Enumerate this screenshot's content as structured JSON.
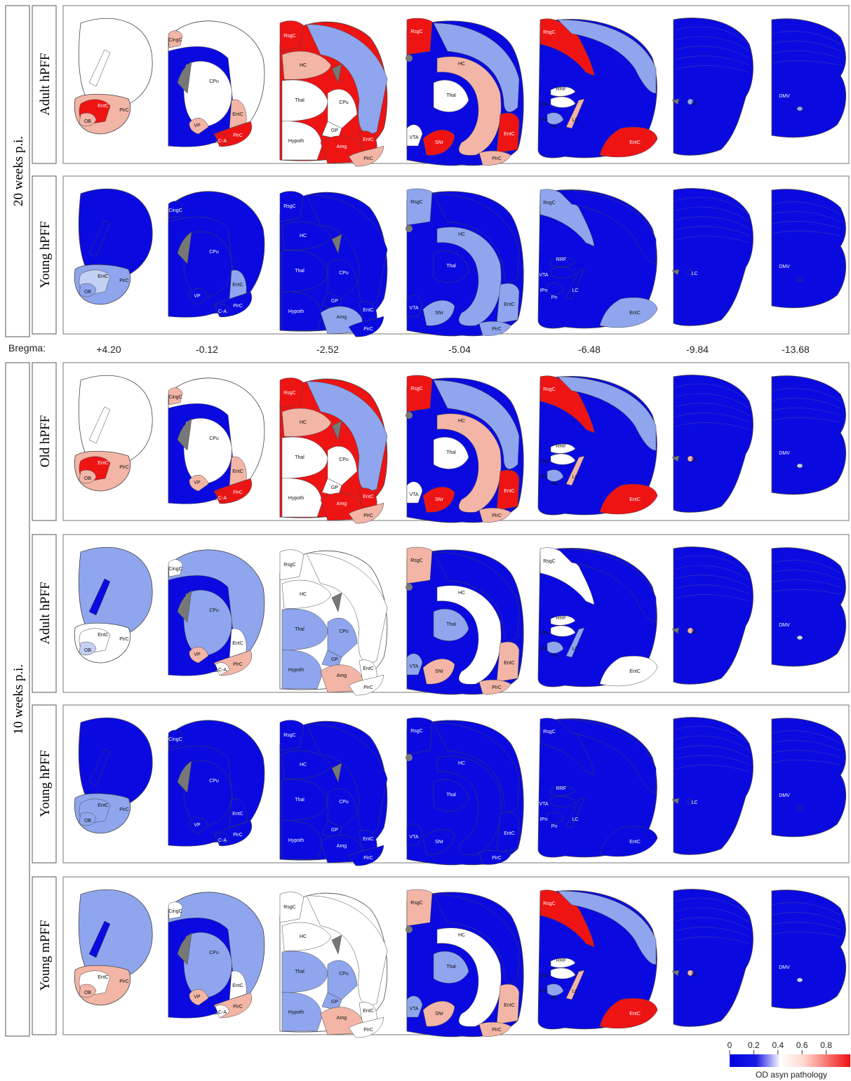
{
  "groups": [
    "20 weeks p.i.",
    "10 weeks p.i."
  ],
  "rows": [
    {
      "label": "Adult hPFF",
      "group": 0
    },
    {
      "label": "Young hPFF",
      "group": 0
    },
    {
      "label": "Old hPFF",
      "group": 1
    },
    {
      "label": "Adult hPFF",
      "group": 1
    },
    {
      "label": "Young hPFF",
      "group": 1
    },
    {
      "label": "Young mPFF",
      "group": 1
    }
  ],
  "bregma": {
    "label": "Bregma:",
    "values": [
      "+4.20",
      "-0.12",
      "-2.52",
      "-5.04",
      "-6.48",
      "-9.84",
      "-13.68"
    ]
  },
  "colorbar": {
    "title": "OD asyn pathology",
    "ticks": [
      "0",
      "0.2",
      "0.4",
      "0.6",
      "0.8"
    ],
    "tick_values": [
      0,
      0.2,
      0.4,
      0.6,
      0.8
    ],
    "min": 0,
    "max": 1,
    "colors": [
      "#0000dd",
      "#ffffff",
      "#ee1111"
    ]
  },
  "palette": {
    "blue": "#0a0ae0",
    "lightblue": "#8fa6ee",
    "paleblue": "#c4d0f3",
    "white": "#ffffff",
    "salmon": "#f2b5a6",
    "red": "#ee1414",
    "gray": "#777777",
    "outline": "#444444"
  },
  "sections": [
    {
      "regions": [
        "OB",
        "EntC",
        "PirC"
      ]
    },
    {
      "regions": [
        "CingC",
        "CPu",
        "VP",
        "EntC",
        "PirC",
        "C-A"
      ]
    },
    {
      "regions": [
        "RsgC",
        "HC",
        "Thal",
        "CPu",
        "GP",
        "Hypoth",
        "Amg",
        "EntC",
        "PirC"
      ]
    },
    {
      "regions": [
        "RsgC",
        "HC",
        "Thal",
        "VTA",
        "SNr",
        "EntC",
        "PirC"
      ]
    },
    {
      "regions": [
        "RsgC",
        "RRF",
        "VTA",
        "IPn",
        "Pn",
        "LC",
        "EntC"
      ]
    },
    {
      "regions": [
        "LC"
      ]
    },
    {
      "regions": [
        "DMV"
      ]
    }
  ],
  "maps": [
    {
      "s1": [
        "white",
        "white",
        "salmon",
        "red",
        "red",
        "salmon"
      ],
      "s2": [
        "white",
        "salmon",
        "white",
        "blue",
        "salmon",
        "salmon",
        "red",
        "red"
      ],
      "s3": [
        "red",
        "lightblue",
        "salmon",
        "white",
        "white",
        "white",
        "white",
        "red",
        "red",
        "salmon"
      ],
      "s4": [
        "red",
        "lightblue",
        "salmon",
        "white",
        "white",
        "red",
        "red",
        "salmon"
      ],
      "s5": [
        "red",
        "lightblue",
        "blue",
        "white",
        "white",
        "salmon",
        "red",
        "lightblue"
      ],
      "s6": [
        "blue",
        "lightblue"
      ],
      "s7": [
        "blue",
        "lightblue"
      ]
    },
    {
      "s1": [
        "blue",
        "blue",
        "lightblue",
        "white",
        "paleblue",
        "lightblue"
      ],
      "s2": [
        "blue",
        "blue",
        "blue",
        "blue",
        "blue",
        "lightblue",
        "blue",
        "blue"
      ],
      "s3": [
        "blue",
        "blue",
        "blue",
        "blue",
        "blue",
        "blue",
        "blue",
        "lightblue",
        "blue",
        "blue"
      ],
      "s4": [
        "lightblue",
        "blue",
        "lightblue",
        "blue",
        "blue",
        "lightblue",
        "lightblue",
        "lightblue"
      ],
      "s5": [
        "lightblue",
        "blue",
        "blue",
        "blue",
        "blue",
        "blue",
        "lightblue",
        "blue"
      ],
      "s6": [
        "blue",
        "blue"
      ],
      "s7": [
        "blue",
        "blue"
      ]
    },
    {
      "s1": [
        "white",
        "white",
        "salmon",
        "red",
        "red",
        "salmon"
      ],
      "s2": [
        "white",
        "salmon",
        "white",
        "blue",
        "salmon",
        "salmon",
        "red",
        "red"
      ],
      "s3": [
        "red",
        "lightblue",
        "salmon",
        "white",
        "white",
        "white",
        "white",
        "red",
        "red",
        "salmon"
      ],
      "s4": [
        "red",
        "lightblue",
        "salmon",
        "white",
        "white",
        "red",
        "red",
        "salmon"
      ],
      "s5": [
        "red",
        "lightblue",
        "blue",
        "white",
        "white",
        "salmon",
        "red",
        "lightblue"
      ],
      "s6": [
        "blue",
        "salmon"
      ],
      "s7": [
        "blue",
        "paleblue"
      ]
    },
    {
      "s1": [
        "lightblue",
        "blue",
        "paleblue",
        "white",
        "white",
        "white"
      ],
      "s2": [
        "lightblue",
        "white",
        "lightblue",
        "blue",
        "salmon",
        "white",
        "salmon",
        "white"
      ],
      "s3": [
        "white",
        "white",
        "white",
        "lightblue",
        "lightblue",
        "lightblue",
        "lightblue",
        "salmon",
        "white",
        "white"
      ],
      "s4": [
        "salmon",
        "blue",
        "white",
        "lightblue",
        "lightblue",
        "salmon",
        "salmon",
        "salmon"
      ],
      "s5": [
        "white",
        "blue",
        "blue",
        "white",
        "white",
        "lightblue",
        "white",
        "lightblue"
      ],
      "s6": [
        "blue",
        "salmon"
      ],
      "s7": [
        "blue",
        "paleblue"
      ]
    },
    {
      "s1": [
        "blue",
        "blue",
        "lightblue",
        "white",
        "lightblue",
        "lightblue"
      ],
      "s2": [
        "blue",
        "blue",
        "blue",
        "blue",
        "blue",
        "blue",
        "blue",
        "blue"
      ],
      "s3": [
        "blue",
        "blue",
        "blue",
        "blue",
        "blue",
        "blue",
        "blue",
        "blue",
        "blue",
        "blue"
      ],
      "s4": [
        "blue",
        "blue",
        "blue",
        "blue",
        "blue",
        "blue",
        "blue",
        "blue"
      ],
      "s5": [
        "blue",
        "blue",
        "blue",
        "blue",
        "blue",
        "blue",
        "blue",
        "blue"
      ],
      "s6": [
        "blue",
        "blue"
      ],
      "s7": [
        "blue",
        "blue"
      ]
    },
    {
      "s1": [
        "lightblue",
        "blue",
        "salmon",
        "white",
        "white",
        "salmon"
      ],
      "s2": [
        "lightblue",
        "white",
        "lightblue",
        "blue",
        "salmon",
        "white",
        "salmon",
        "white"
      ],
      "s3": [
        "white",
        "white",
        "white",
        "lightblue",
        "lightblue",
        "lightblue",
        "lightblue",
        "salmon",
        "white",
        "white"
      ],
      "s4": [
        "salmon",
        "blue",
        "white",
        "lightblue",
        "lightblue",
        "salmon",
        "salmon",
        "salmon"
      ],
      "s5": [
        "red",
        "lightblue",
        "blue",
        "white",
        "white",
        "salmon",
        "red",
        "lightblue"
      ],
      "s6": [
        "blue",
        "salmon"
      ],
      "s7": [
        "blue",
        "paleblue"
      ]
    }
  ]
}
